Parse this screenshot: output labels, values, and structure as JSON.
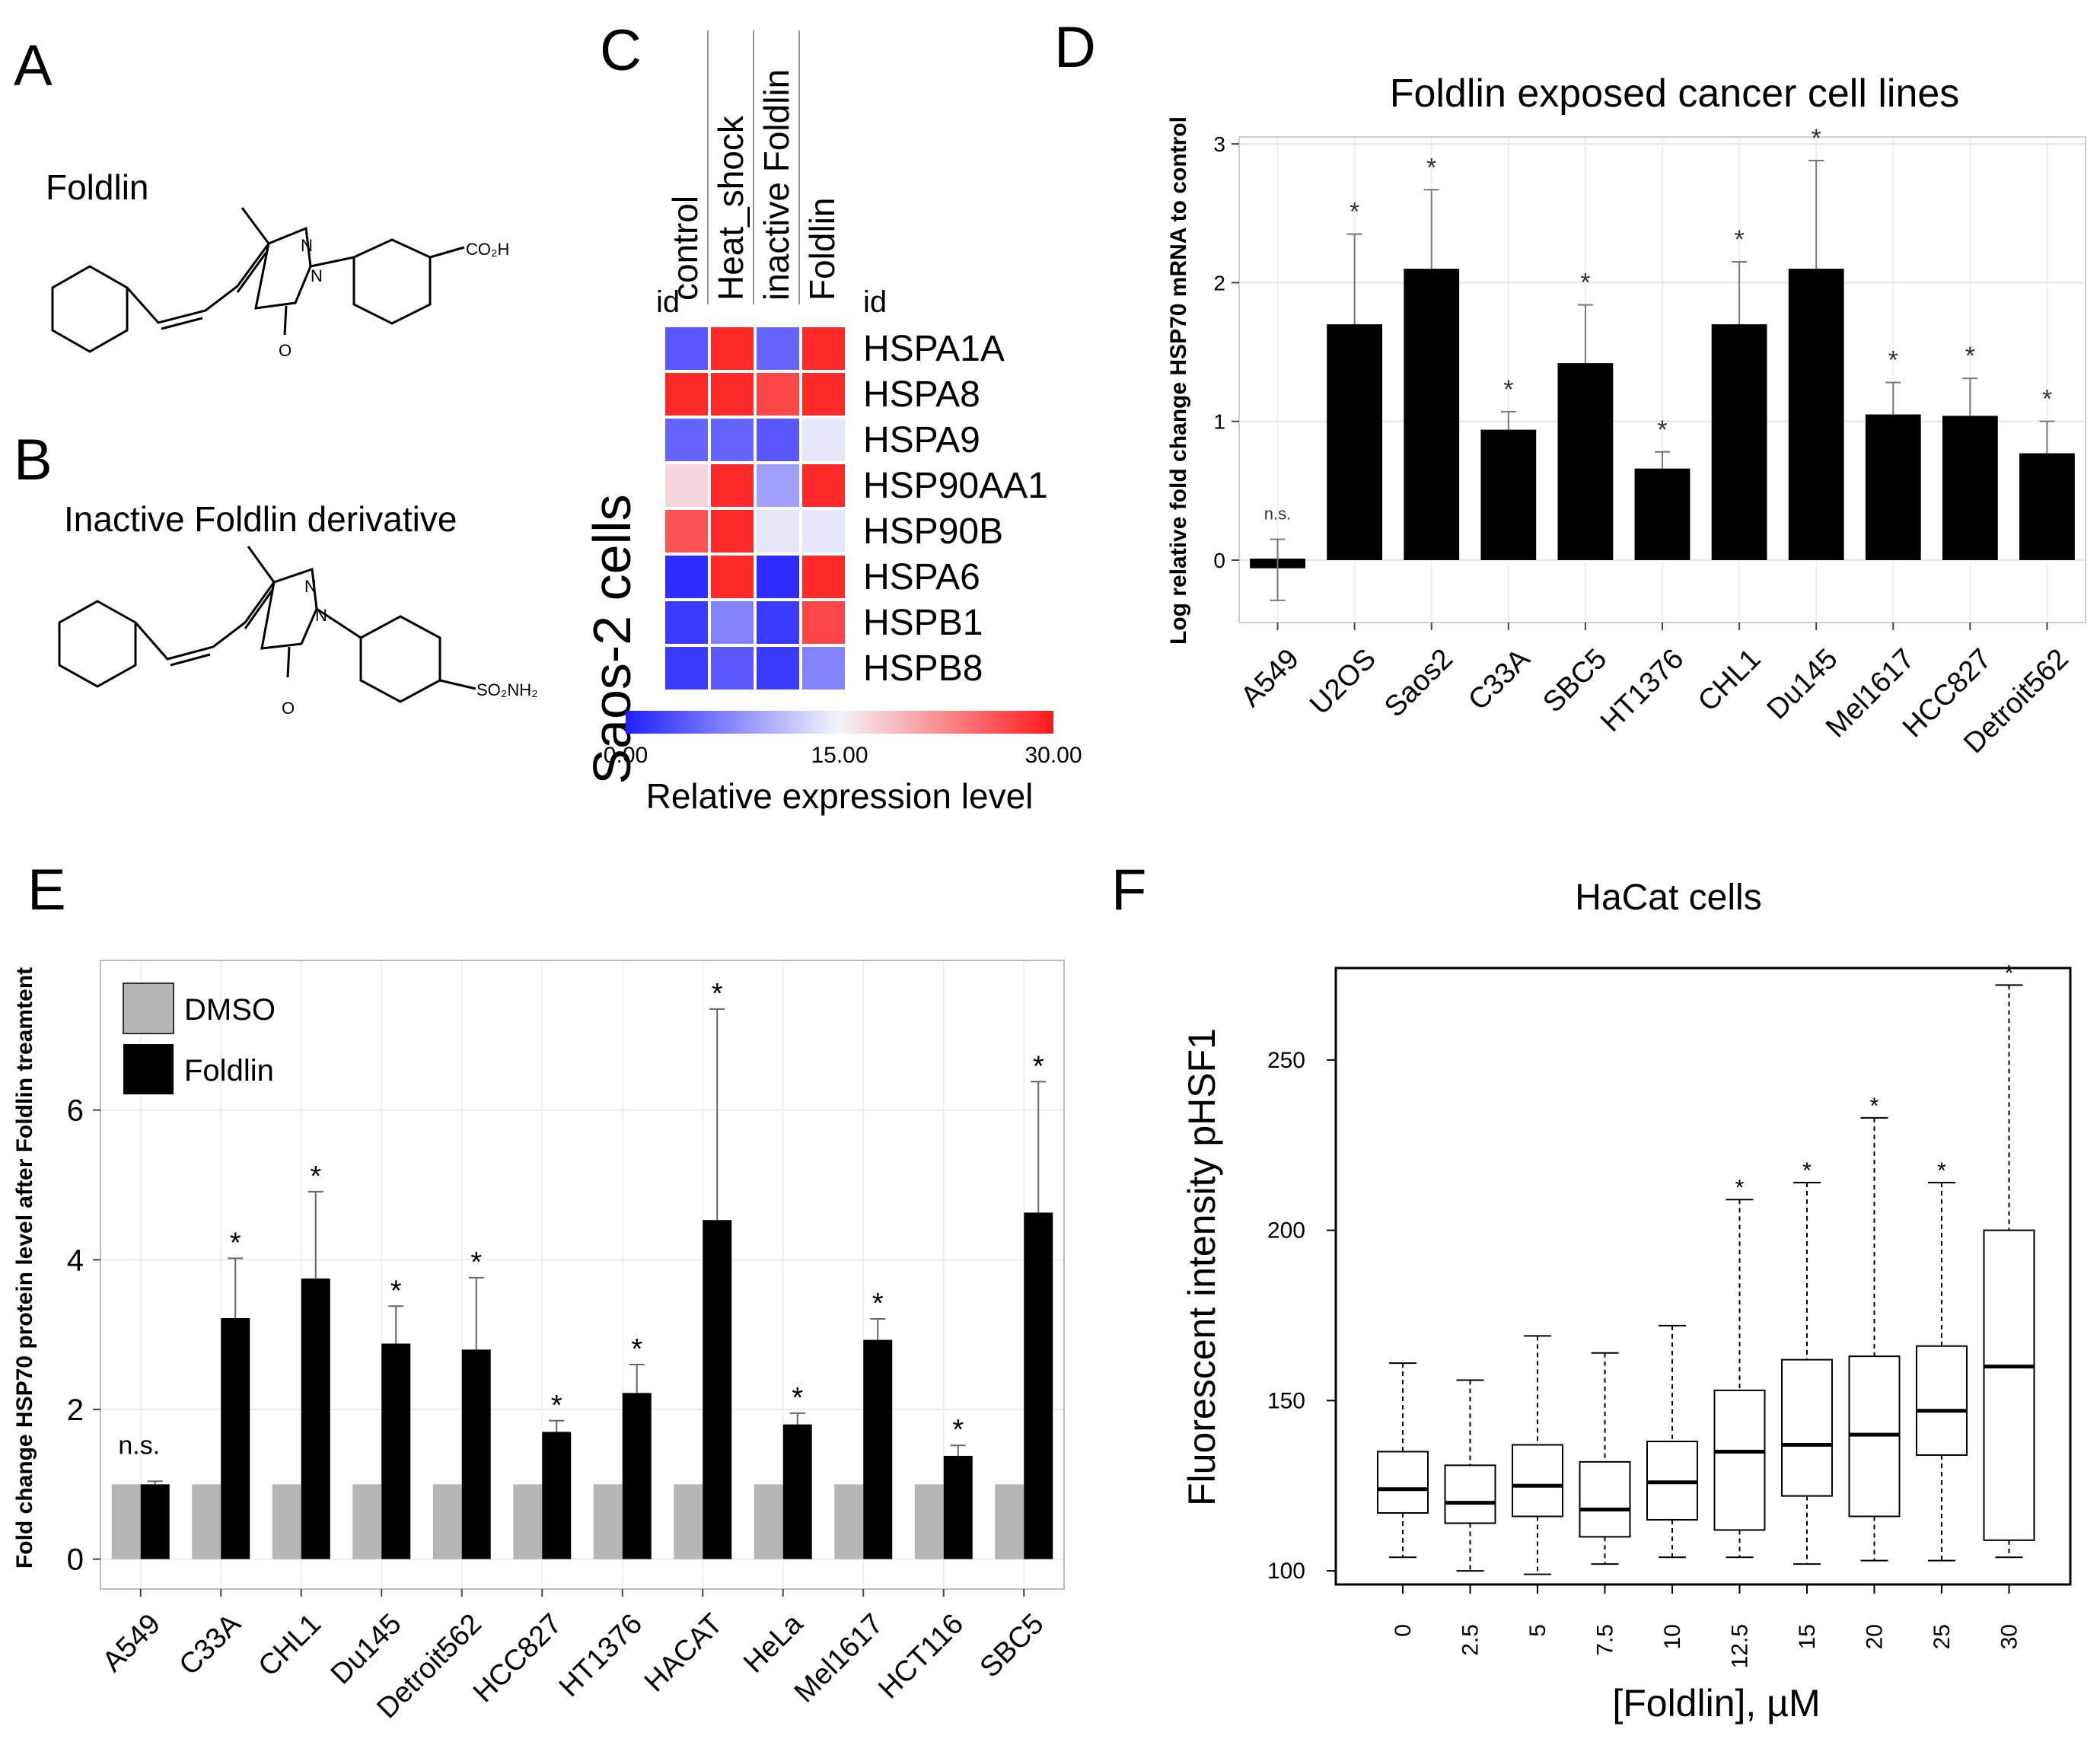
{
  "panels": {
    "A": {
      "letter": "A",
      "compound": "Foldlin",
      "atoms": {
        "n1": "N",
        "n2": "N",
        "o": "O",
        "acid": "CO₂H"
      }
    },
    "B": {
      "letter": "B",
      "compound": "Inactive Foldlin derivative",
      "atoms": {
        "n1": "N",
        "n2": "N",
        "o": "O",
        "sulf": "SO₂NH₂"
      }
    },
    "C": {
      "letter": "C"
    },
    "D": {
      "letter": "D"
    },
    "E": {
      "letter": "E"
    },
    "F": {
      "letter": "F"
    }
  },
  "colors": {
    "low": "#1f1fff",
    "mid": "#f4f4fb",
    "high": "#ff1a1a",
    "bar_black": "#000000",
    "bar_grey": "#b5b5b5"
  },
  "chart_data": [
    {
      "panel": "C",
      "type": "heatmap",
      "title": "",
      "ylabel": "Saos-2 cells",
      "row_header": "id",
      "col_header": "id",
      "columns": [
        "control",
        "Heat_shock",
        "inactive Foldlin",
        "Foldlin"
      ],
      "rows": [
        "HSPA1A",
        "HSPA8",
        "HSPA9",
        "HSP90AA1",
        "HSP90B",
        "HSPA6",
        "HSPB1",
        "HSPB8"
      ],
      "values": [
        [
          4,
          29,
          5,
          29
        ],
        [
          29,
          29,
          27,
          29
        ],
        [
          5,
          5,
          4,
          14
        ],
        [
          17,
          29,
          9,
          29
        ],
        [
          26,
          29,
          14,
          14
        ],
        [
          1,
          29,
          1,
          29
        ],
        [
          2,
          7,
          2,
          27
        ],
        [
          2,
          4,
          2,
          7
        ]
      ],
      "scale": {
        "min": 0,
        "max": 30,
        "tick_labels": [
          "0.00",
          "15.00",
          "30.00"
        ],
        "label": "Relative expression level"
      }
    },
    {
      "panel": "D",
      "type": "bar",
      "title": "Foldlin exposed cancer cell lines",
      "xlabel": "",
      "ylabel": "Log relative fold change  HSP70 mRNA  to control",
      "ylim": [
        -0.45,
        3.05
      ],
      "yticks": [
        0,
        1,
        2,
        3
      ],
      "categories": [
        "A549",
        "U2OS",
        "Saos2",
        "C33A",
        "SBC5",
        "HT1376",
        "CHL1",
        "Du145",
        "Mel1617",
        "HCC827",
        "Detroit562"
      ],
      "values": [
        -0.07,
        1.7,
        2.1,
        0.94,
        1.42,
        0.66,
        1.7,
        2.1,
        1.05,
        1.04,
        0.77
      ],
      "errors": [
        0.22,
        0.65,
        0.57,
        0.13,
        0.42,
        0.12,
        0.45,
        0.78,
        0.23,
        0.27,
        0.23
      ],
      "annotations": [
        "n.s.",
        "*",
        "*",
        "*",
        "*",
        "*",
        "*",
        "*",
        "*",
        "*",
        "*"
      ]
    },
    {
      "panel": "E",
      "type": "bar",
      "title": "",
      "xlabel": "",
      "ylabel": "Fold change HSP70 protein level after Foldlin treamtent",
      "ylim": [
        -0.4,
        8.0
      ],
      "yticks": [
        0,
        2,
        4,
        6
      ],
      "categories": [
        "A549",
        "C33A",
        "CHL1",
        "Du145",
        "Detroit562",
        "HCC827",
        "HT1376",
        "HACAT",
        "HeLa",
        "Mel1617",
        "HCT116",
        "SBC5"
      ],
      "series": [
        {
          "name": "DMSO",
          "values": [
            1,
            1,
            1,
            1,
            1,
            1,
            1,
            1,
            1,
            1,
            1,
            1
          ]
        },
        {
          "name": "Foldlin",
          "values": [
            1.0,
            3.22,
            3.75,
            2.88,
            2.8,
            1.7,
            2.22,
            4.53,
            1.8,
            2.93,
            1.38,
            4.63
          ],
          "errors": [
            0.04,
            0.8,
            1.16,
            0.5,
            0.96,
            0.15,
            0.38,
            2.82,
            0.15,
            0.28,
            0.14,
            1.75
          ]
        }
      ],
      "annotations": [
        "n.s.",
        "*",
        "*",
        "*",
        "*",
        "*",
        "*",
        "*",
        "*",
        "*",
        "*",
        "*"
      ],
      "legend": "top-left"
    },
    {
      "panel": "F",
      "type": "box",
      "title": "HaCat cells",
      "xlabel": "[Foldlin], µM",
      "ylabel": "Fluorescent intensity pHSF1",
      "ylim": [
        96,
        277
      ],
      "yticks": [
        100,
        150,
        200,
        250
      ],
      "categories": [
        "0",
        "2.5",
        "5",
        "7.5",
        "10",
        "12.5",
        "15",
        "20",
        "25",
        "30"
      ],
      "boxes": [
        {
          "min": 104,
          "q1": 117,
          "median": 124,
          "q3": 135,
          "max": 161
        },
        {
          "min": 100,
          "q1": 114,
          "median": 120,
          "q3": 131,
          "max": 156
        },
        {
          "min": 99,
          "q1": 116,
          "median": 125,
          "q3": 137,
          "max": 169
        },
        {
          "min": 102,
          "q1": 110,
          "median": 118,
          "q3": 132,
          "max": 164
        },
        {
          "min": 104,
          "q1": 115,
          "median": 126,
          "q3": 138,
          "max": 172
        },
        {
          "min": 104,
          "q1": 112,
          "median": 135,
          "q3": 153,
          "max": 209
        },
        {
          "min": 102,
          "q1": 122,
          "median": 137,
          "q3": 162,
          "max": 214
        },
        {
          "min": 103,
          "q1": 116,
          "median": 140,
          "q3": 163,
          "max": 233
        },
        {
          "min": 103,
          "q1": 134,
          "median": 147,
          "q3": 166,
          "max": 214
        },
        {
          "min": 104,
          "q1": 109,
          "median": 160,
          "q3": 200,
          "max": 272
        }
      ],
      "annotations": [
        "",
        "",
        "",
        "",
        "",
        "*",
        "*",
        "*",
        "*",
        "*"
      ]
    }
  ]
}
